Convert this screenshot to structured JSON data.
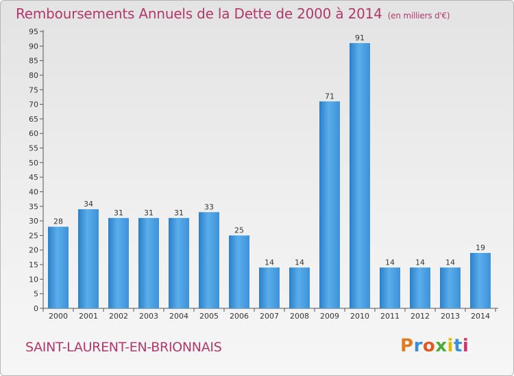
{
  "header": {
    "title": "Remboursements Annuels de la Dette de 2000 à 2014",
    "unit": "(en milliers d'€)"
  },
  "footer": {
    "commune": "SAINT-LAURENT-EN-BRIONNAIS",
    "logo_text": "Proxiti",
    "logo_colors": [
      "#e07b1f",
      "#3a8fd6",
      "#e05a1f",
      "#4caa3c",
      "#e6b800",
      "#3a8fd6",
      "#d6326e"
    ]
  },
  "chart_data": {
    "type": "bar",
    "title": "Remboursements Annuels de la Dette de 2000 à 2014",
    "xlabel": "",
    "ylabel": "",
    "categories": [
      "2000",
      "2001",
      "2002",
      "2003",
      "2004",
      "2005",
      "2006",
      "2007",
      "2008",
      "2009",
      "2010",
      "2011",
      "2012",
      "2013",
      "2014"
    ],
    "values": [
      28,
      34,
      31,
      31,
      31,
      33,
      25,
      14,
      14,
      71,
      91,
      14,
      14,
      14,
      19
    ],
    "ylim": [
      0,
      95
    ],
    "yticks": [
      0,
      5,
      10,
      15,
      20,
      25,
      30,
      35,
      40,
      45,
      50,
      55,
      60,
      65,
      70,
      75,
      80,
      85,
      90,
      95
    ],
    "grid": false,
    "bar_color_light": "#5aaeec",
    "bar_color_dark": "#2b7fc6"
  }
}
